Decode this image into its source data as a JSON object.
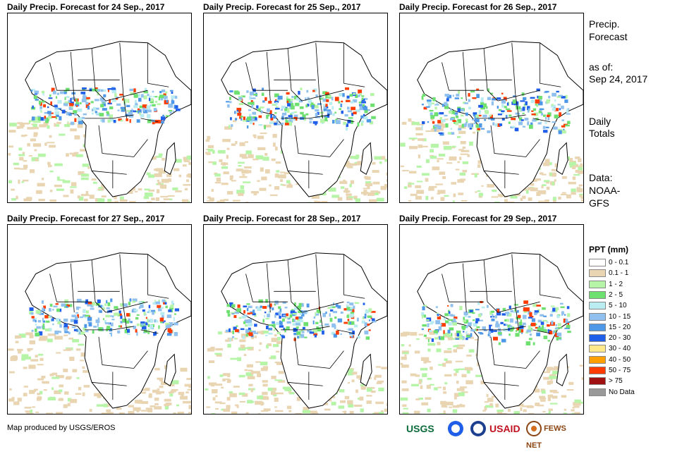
{
  "panels": [
    {
      "title": "Daily Precip. Forecast for 24  Sep., 2017"
    },
    {
      "title": "Daily Precip. Forecast for 25  Sep., 2017"
    },
    {
      "title": "Daily Precip. Forecast for 26  Sep., 2017"
    },
    {
      "title": "Daily Precip. Forecast for 27  Sep., 2017"
    },
    {
      "title": "Daily Precip. Forecast for 28  Sep., 2017"
    },
    {
      "title": "Daily Precip. Forecast for 29  Sep., 2017"
    }
  ],
  "side": {
    "heading_line1": "Precip.",
    "heading_line2": "Forecast",
    "asof_label": "as of:",
    "asof_date": "Sep 24, 2017",
    "daily_line1": "Daily",
    "daily_line2": "Totals",
    "data_line1": "Data:",
    "data_line2": "NOAA-",
    "data_line3": "GFS"
  },
  "legend": {
    "title": "PPT (mm)",
    "items": [
      {
        "label": "0 - 0.1",
        "color": "#ffffff"
      },
      {
        "label": "0.1 - 1",
        "color": "#e9d5b2"
      },
      {
        "label": "1 - 2",
        "color": "#b6f5a8"
      },
      {
        "label": "2 - 5",
        "color": "#6ee070"
      },
      {
        "label": "5 - 10",
        "color": "#b8ecf0"
      },
      {
        "label": "10 - 15",
        "color": "#8fc0ee"
      },
      {
        "label": "15 - 20",
        "color": "#4f98e8"
      },
      {
        "label": "20 - 30",
        "color": "#1f5ee8"
      },
      {
        "label": "30 - 40",
        "color": "#ffe98a"
      },
      {
        "label": "40 - 50",
        "color": "#ffa000"
      },
      {
        "label": "50 - 75",
        "color": "#ff3c00"
      },
      {
        "label": "> 75",
        "color": "#a01010"
      },
      {
        "label": "No Data",
        "color": "#999999"
      }
    ]
  },
  "credit": "Map produced by USGS/EROS",
  "logos": {
    "usgs": "USGS",
    "usaid": "USAID",
    "fewsnet": "FEWS NET"
  }
}
